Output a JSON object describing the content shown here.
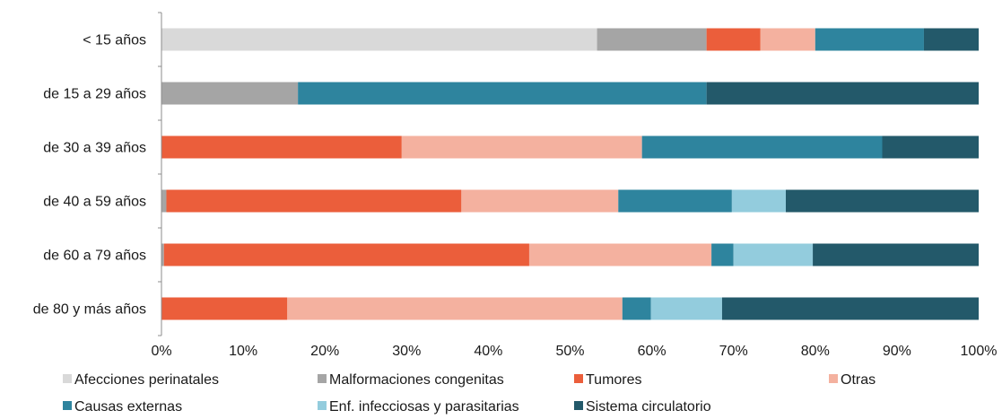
{
  "chart_data": {
    "type": "bar",
    "orientation": "horizontal",
    "stacked": "percent",
    "title": "",
    "xlabel": "",
    "ylabel": "",
    "xlim": [
      0,
      100
    ],
    "x_ticks": [
      "0%",
      "10%",
      "20%",
      "30%",
      "40%",
      "50%",
      "60%",
      "70%",
      "80%",
      "90%",
      "100%"
    ],
    "grid": false,
    "legend_position": "bottom",
    "categories": [
      "< 15 años",
      "de 15 a 29 años",
      "de 30 a 39 años",
      "de 40 a 59 años",
      "de 60 a 79 años",
      "de 80 y más años"
    ],
    "series": [
      {
        "name": "Afecciones perinatales",
        "color": "#d9d9d9",
        "values": [
          53.3,
          0,
          0,
          0,
          0,
          0
        ]
      },
      {
        "name": "Malformaciones congenitas",
        "color": "#a5a5a5",
        "values": [
          13.4,
          16.7,
          0,
          0.6,
          0.3,
          0
        ]
      },
      {
        "name": "Tumores",
        "color": "#eb5e3b",
        "values": [
          6.6,
          0,
          29.4,
          36.1,
          44.7,
          15.4
        ]
      },
      {
        "name": "Otras",
        "color": "#f4b19f",
        "values": [
          6.7,
          0,
          29.4,
          19.2,
          22.3,
          41.0
        ]
      },
      {
        "name": "Causas externas",
        "color": "#2e849e",
        "values": [
          13.3,
          50.0,
          29.4,
          13.9,
          2.7,
          3.5
        ]
      },
      {
        "name": "Enf. infecciosas y parasitarias",
        "color": "#93ccdd",
        "values": [
          0,
          0,
          0,
          6.6,
          9.7,
          8.7
        ]
      },
      {
        "name": "Sistema circulatorio",
        "color": "#23596a",
        "values": [
          6.7,
          33.3,
          11.8,
          23.6,
          20.3,
          31.4
        ]
      }
    ]
  }
}
